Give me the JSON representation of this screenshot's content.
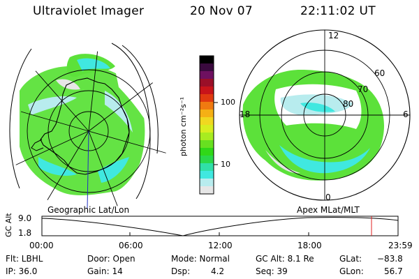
{
  "header": {
    "instrument": "Ultraviolet Imager",
    "date": "20 Nov 07",
    "time": "22:11:02 UT"
  },
  "geo_panel": {
    "label": "Geographic Lat/Lon"
  },
  "mag_panel": {
    "label": "Apex MLat/MLT",
    "mlt_labels": [
      "12",
      "18",
      "6",
      "0"
    ],
    "lat_labels": [
      "60",
      "70",
      "80"
    ]
  },
  "colorbar": {
    "unit_label": "photon cm⁻²s⁻¹",
    "tick_labels": [
      "100",
      "10"
    ],
    "colors": [
      "#000000",
      "#3a0a3e",
      "#6e1060",
      "#9a0f28",
      "#c8141a",
      "#e03a10",
      "#f07a10",
      "#f5b015",
      "#f0d820",
      "#d8ee20",
      "#a8ec20",
      "#68e020",
      "#30d818",
      "#2ad84a",
      "#30e0a8",
      "#40e8e0",
      "#b8ecee",
      "#e6e6e6"
    ]
  },
  "altitude_plot": {
    "axis_label": "GC Alt",
    "y_labels": [
      "9.0",
      "1.8"
    ],
    "x_labels": [
      "00:00",
      "06:00",
      "12:00",
      "18:00",
      "23:59"
    ],
    "current_marker_color": "#e02020"
  },
  "status": {
    "filter": "Flt: LBHL",
    "ip": "IP: 36.0",
    "door": "Door: Open",
    "gain": "Gain: 14",
    "mode": "Mode: Normal",
    "dsp_label": "Dsp:",
    "dsp_value": "4.2",
    "gc_alt": "GC Alt: 8.1 Re",
    "seq": "Seq: 39",
    "glat_label": "GLat:",
    "glat_value": "−83.8",
    "glon_label": "GLon:",
    "glon_value": "56.7"
  }
}
